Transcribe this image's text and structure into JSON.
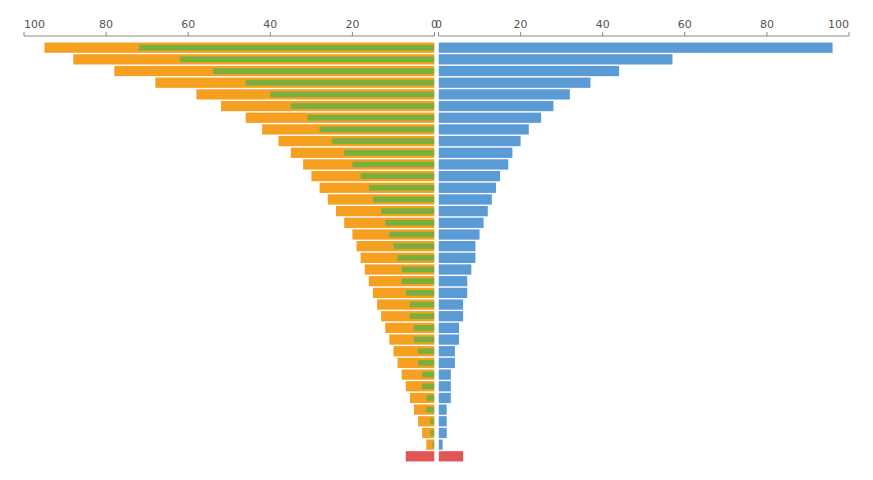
{
  "chart_data": [
    {
      "type": "bar",
      "orientation": "horizontal",
      "categories": [
        null,
        null,
        null,
        null,
        null,
        null,
        null,
        null,
        null,
        null,
        null,
        null,
        null,
        null,
        null,
        null,
        null,
        null,
        null,
        null,
        null,
        null,
        null,
        null,
        null,
        null,
        null,
        null,
        null,
        null,
        null,
        null,
        null,
        null,
        null,
        null
      ],
      "series": [
        {
          "color": "#F5A020",
          "values": [
            95,
            88,
            78,
            68,
            58,
            52,
            46,
            42,
            38,
            35,
            32,
            30,
            28,
            26,
            24,
            22,
            20,
            19,
            18,
            17,
            16,
            15,
            14,
            13,
            12,
            11,
            10,
            9,
            8,
            7,
            6,
            5,
            4,
            3,
            2,
            null
          ]
        },
        {
          "color": "#78B040",
          "values": [
            72,
            62,
            54,
            46,
            40,
            35,
            31,
            28,
            25,
            22,
            20,
            18,
            16,
            15,
            13,
            12,
            11,
            10,
            9,
            8,
            8,
            7,
            6,
            6,
            5,
            5,
            4,
            4,
            3,
            3,
            2,
            2,
            1,
            1,
            0.5,
            null
          ]
        },
        {
          "color": "#E05555",
          "values": [
            null,
            null,
            null,
            null,
            null,
            null,
            null,
            null,
            null,
            null,
            null,
            null,
            null,
            null,
            null,
            null,
            null,
            null,
            null,
            null,
            null,
            null,
            null,
            null,
            null,
            null,
            null,
            null,
            null,
            null,
            null,
            null,
            null,
            null,
            null,
            7
          ]
        }
      ],
      "xlim": [
        100,
        0
      ],
      "xticks": [
        100,
        80,
        60,
        40,
        20,
        0
      ],
      "tick_labels": "x"
    },
    {
      "type": "bar",
      "orientation": "horizontal",
      "categories": [
        null,
        null,
        null,
        null,
        null,
        null,
        null,
        null,
        null,
        null,
        null,
        null,
        null,
        null,
        null,
        null,
        null,
        null,
        null,
        null,
        null,
        null,
        null,
        null,
        null,
        null,
        null,
        null,
        null,
        null,
        null,
        null,
        null,
        null,
        null,
        null
      ],
      "series": [
        {
          "color": "#5B9BD5",
          "values": [
            96,
            57,
            44,
            37,
            32,
            28,
            25,
            22,
            20,
            18,
            17,
            15,
            14,
            13,
            12,
            11,
            10,
            9,
            9,
            8,
            7,
            7,
            6,
            6,
            5,
            5,
            4,
            4,
            3,
            3,
            3,
            2,
            2,
            2,
            1,
            null
          ]
        },
        {
          "color": "#E05555",
          "values": [
            null,
            null,
            null,
            null,
            null,
            null,
            null,
            null,
            null,
            null,
            null,
            null,
            null,
            null,
            null,
            null,
            null,
            null,
            null,
            null,
            null,
            null,
            null,
            null,
            null,
            null,
            null,
            null,
            null,
            null,
            null,
            null,
            null,
            null,
            null,
            6
          ]
        }
      ],
      "xlim": [
        0,
        100
      ],
      "xticks": [
        0,
        20,
        40,
        60,
        80,
        100
      ],
      "tick_labels": "x"
    }
  ]
}
